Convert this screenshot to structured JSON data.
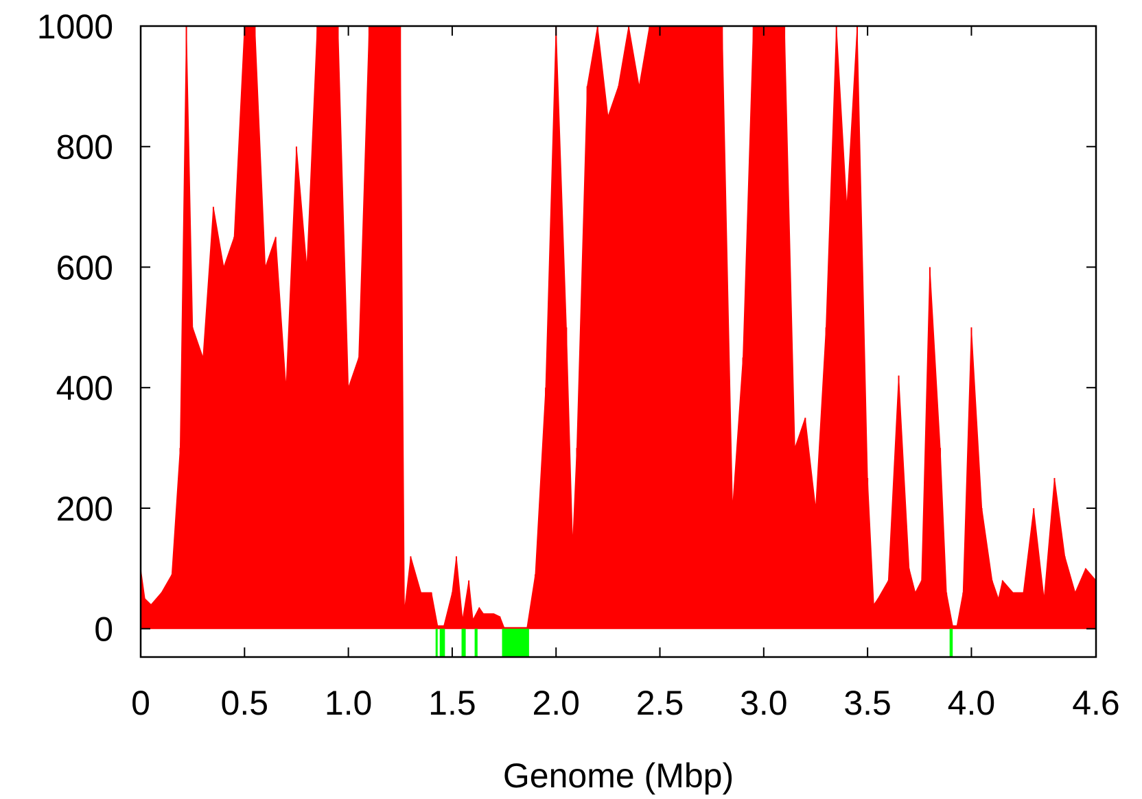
{
  "chart_data": {
    "type": "area",
    "title": "",
    "xlabel": "Genome (Mbp)",
    "ylabel": "",
    "xlim": [
      0,
      4.6
    ],
    "ylim": [
      -47,
      1000
    ],
    "grid": false,
    "x_ticks": [
      {
        "value": 0,
        "label": "0"
      },
      {
        "value": 0.5,
        "label": "0.5"
      },
      {
        "value": 1.0,
        "label": "1.0"
      },
      {
        "value": 1.5,
        "label": "1.5"
      },
      {
        "value": 2.0,
        "label": "2.0"
      },
      {
        "value": 2.5,
        "label": "2.5"
      },
      {
        "value": 3.0,
        "label": "3.0"
      },
      {
        "value": 3.5,
        "label": "3.5"
      },
      {
        "value": 4.0,
        "label": "4.0"
      },
      {
        "value": 4.6,
        "label": "4.6"
      }
    ],
    "y_ticks": [
      {
        "value": 0,
        "label": "0"
      },
      {
        "value": 200,
        "label": "200"
      },
      {
        "value": 400,
        "label": "400"
      },
      {
        "value": 600,
        "label": "600"
      },
      {
        "value": 800,
        "label": "800"
      },
      {
        "value": 1000,
        "label": "1000"
      }
    ],
    "series": [
      {
        "color": "#ff0000",
        "x": [
          0,
          0.02,
          0.05,
          0.1,
          0.15,
          0.19,
          0.22,
          0.25,
          0.3,
          0.35,
          0.4,
          0.45,
          0.5,
          0.55,
          0.6,
          0.65,
          0.7,
          0.75,
          0.8,
          0.85,
          0.9,
          0.95,
          1.0,
          1.05,
          1.1,
          1.15,
          1.2,
          1.25,
          1.27,
          1.3,
          1.35,
          1.4,
          1.43,
          1.46,
          1.5,
          1.52,
          1.55,
          1.58,
          1.6,
          1.63,
          1.65,
          1.7,
          1.73,
          1.75,
          1.8,
          1.86,
          1.9,
          1.95,
          2.0,
          2.05,
          2.08,
          2.1,
          2.15,
          2.2,
          2.25,
          2.3,
          2.35,
          2.4,
          2.45,
          2.5,
          2.55,
          2.6,
          2.65,
          2.7,
          2.75,
          2.8,
          2.85,
          2.9,
          2.95,
          3.0,
          3.05,
          3.1,
          3.15,
          3.2,
          3.25,
          3.3,
          3.35,
          3.4,
          3.45,
          3.5,
          3.53,
          3.55,
          3.6,
          3.65,
          3.7,
          3.73,
          3.76,
          3.8,
          3.85,
          3.88,
          3.91,
          3.93,
          3.96,
          4.0,
          4.05,
          4.1,
          4.13,
          4.15,
          4.2,
          4.25,
          4.3,
          4.35,
          4.4,
          4.45,
          4.5,
          4.55,
          4.6
        ],
        "values": [
          100,
          50,
          40,
          60,
          90,
          300,
          1000,
          500,
          450,
          700,
          600,
          650,
          1000,
          1000,
          600,
          650,
          400,
          800,
          600,
          1000,
          1000,
          1000,
          400,
          450,
          1000,
          1000,
          1000,
          1000,
          30,
          120,
          60,
          60,
          5,
          5,
          60,
          120,
          15,
          80,
          15,
          35,
          25,
          25,
          20,
          2,
          2,
          2,
          90,
          400,
          1000,
          500,
          140,
          300,
          900,
          1000,
          850,
          900,
          1000,
          900,
          1000,
          1000,
          1000,
          1000,
          1000,
          1000,
          1000,
          1000,
          200,
          450,
          1000,
          1000,
          1000,
          1000,
          300,
          350,
          200,
          500,
          1000,
          700,
          1000,
          250,
          40,
          50,
          80,
          420,
          100,
          60,
          80,
          600,
          300,
          60,
          5,
          5,
          60,
          500,
          200,
          80,
          50,
          80,
          60,
          60,
          200,
          50,
          250,
          120,
          60,
          100,
          80
        ]
      }
    ],
    "highlight_bars": {
      "color": "#00ff00",
      "range_y": [
        -47,
        0
      ],
      "regions": [
        [
          1.42,
          1.43
        ],
        [
          1.44,
          1.465
        ],
        [
          1.545,
          1.565
        ],
        [
          1.608,
          1.622
        ],
        [
          1.74,
          1.87
        ],
        [
          3.895,
          3.91
        ]
      ]
    }
  }
}
